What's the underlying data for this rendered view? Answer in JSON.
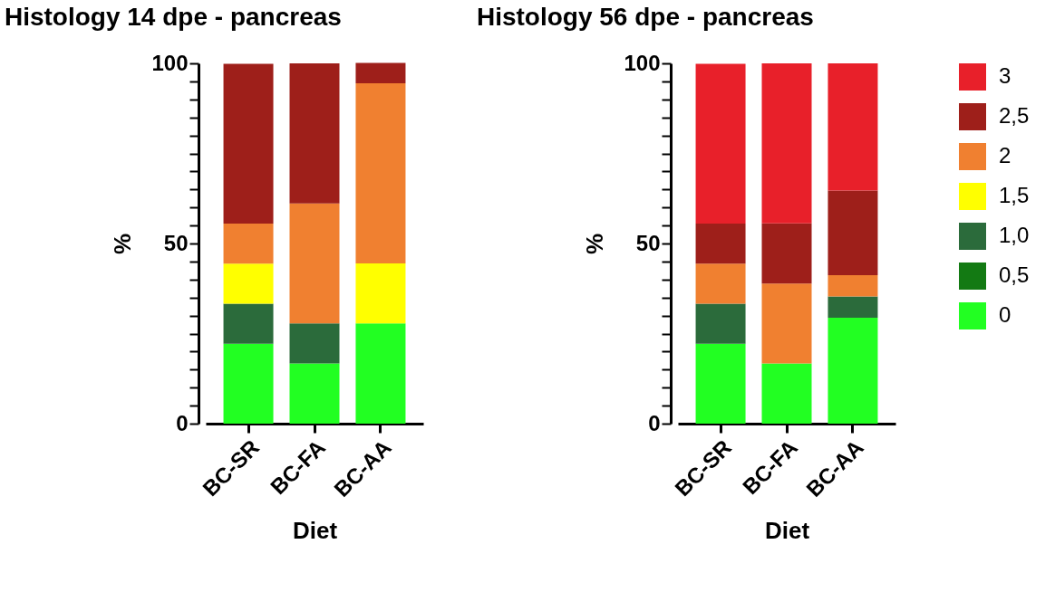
{
  "chart_data": [
    {
      "type": "bar",
      "title": "Histology 14 dpe - pancreas",
      "xlabel": "Diet",
      "ylabel": "%",
      "categories": [
        "BC-SR",
        "BC-FA",
        "BC-AA"
      ],
      "stacked": true,
      "legend": false,
      "grid": false,
      "ylim": [
        0,
        100
      ],
      "yticks": [
        0,
        {
          "value": 5,
          "label": null
        },
        {
          "value": 10,
          "label": null
        },
        {
          "value": 15,
          "label": null
        },
        {
          "value": 20,
          "label": null
        },
        {
          "value": 25,
          "label": null
        },
        {
          "value": 30,
          "label": null
        },
        {
          "value": 35,
          "label": null
        },
        {
          "value": 40,
          "label": null
        },
        {
          "value": 45,
          "label": null
        },
        50,
        {
          "value": 55,
          "label": null
        },
        {
          "value": 60,
          "label": null
        },
        {
          "value": 65,
          "label": null
        },
        {
          "value": 70,
          "label": null
        },
        {
          "value": 75,
          "label": null
        },
        {
          "value": 80,
          "label": null
        },
        {
          "value": 85,
          "label": null
        },
        {
          "value": 90,
          "label": null
        },
        {
          "value": 95,
          "label": null
        },
        100
      ],
      "series": [
        {
          "color": "#22ff22",
          "values": [
            22.2,
            16.7,
            27.8
          ]
        },
        {
          "color": "#2b6b3b",
          "values": [
            11.1,
            11.1,
            0
          ]
        },
        {
          "color": "#ffff00",
          "values": [
            11.1,
            0,
            16.7
          ]
        },
        {
          "color": "#f08030",
          "values": [
            11.1,
            33.3,
            50
          ]
        },
        {
          "color": "#9e1f1a",
          "values": [
            44.4,
            38.9,
            5.6
          ]
        }
      ]
    },
    {
      "type": "bar",
      "title": "Histology 56 dpe - pancreas",
      "xlabel": "Diet",
      "ylabel": "%",
      "categories": [
        "BC-SR",
        "BC-FA",
        "BC-AA"
      ],
      "stacked": true,
      "legend": "right",
      "grid": false,
      "ylim": [
        0,
        100
      ],
      "yticks": [
        0,
        {
          "value": 5,
          "label": null
        },
        {
          "value": 10,
          "label": null
        },
        {
          "value": 15,
          "label": null
        },
        {
          "value": 20,
          "label": null
        },
        {
          "value": 25,
          "label": null
        },
        {
          "value": 30,
          "label": null
        },
        {
          "value": 35,
          "label": null
        },
        {
          "value": 40,
          "label": null
        },
        {
          "value": 45,
          "label": null
        },
        50,
        {
          "value": 55,
          "label": null
        },
        {
          "value": 60,
          "label": null
        },
        {
          "value": 65,
          "label": null
        },
        {
          "value": 70,
          "label": null
        },
        {
          "value": 75,
          "label": null
        },
        {
          "value": 80,
          "label": null
        },
        {
          "value": 85,
          "label": null
        },
        {
          "value": 90,
          "label": null
        },
        {
          "value": 95,
          "label": null
        },
        100
      ],
      "series": [
        {
          "name": "0",
          "color": "#22ff22",
          "values": [
            22.2,
            16.7,
            29.4
          ]
        },
        {
          "name": "0,5",
          "color": "#137a13",
          "values": [
            0,
            0,
            0
          ]
        },
        {
          "name": "1,0",
          "color": "#2b6b3b",
          "values": [
            11.1,
            0,
            5.9
          ]
        },
        {
          "name": "1,5",
          "color": "#ffff00",
          "values": [
            0,
            0,
            0
          ]
        },
        {
          "name": "2",
          "color": "#f08030",
          "values": [
            11.1,
            22.2,
            5.9
          ]
        },
        {
          "name": "2,5",
          "color": "#9e1f1a",
          "values": [
            11.1,
            16.7,
            23.5
          ]
        },
        {
          "name": "3",
          "color": "#e8202a",
          "values": [
            44.4,
            44.4,
            35.3
          ]
        }
      ]
    }
  ]
}
